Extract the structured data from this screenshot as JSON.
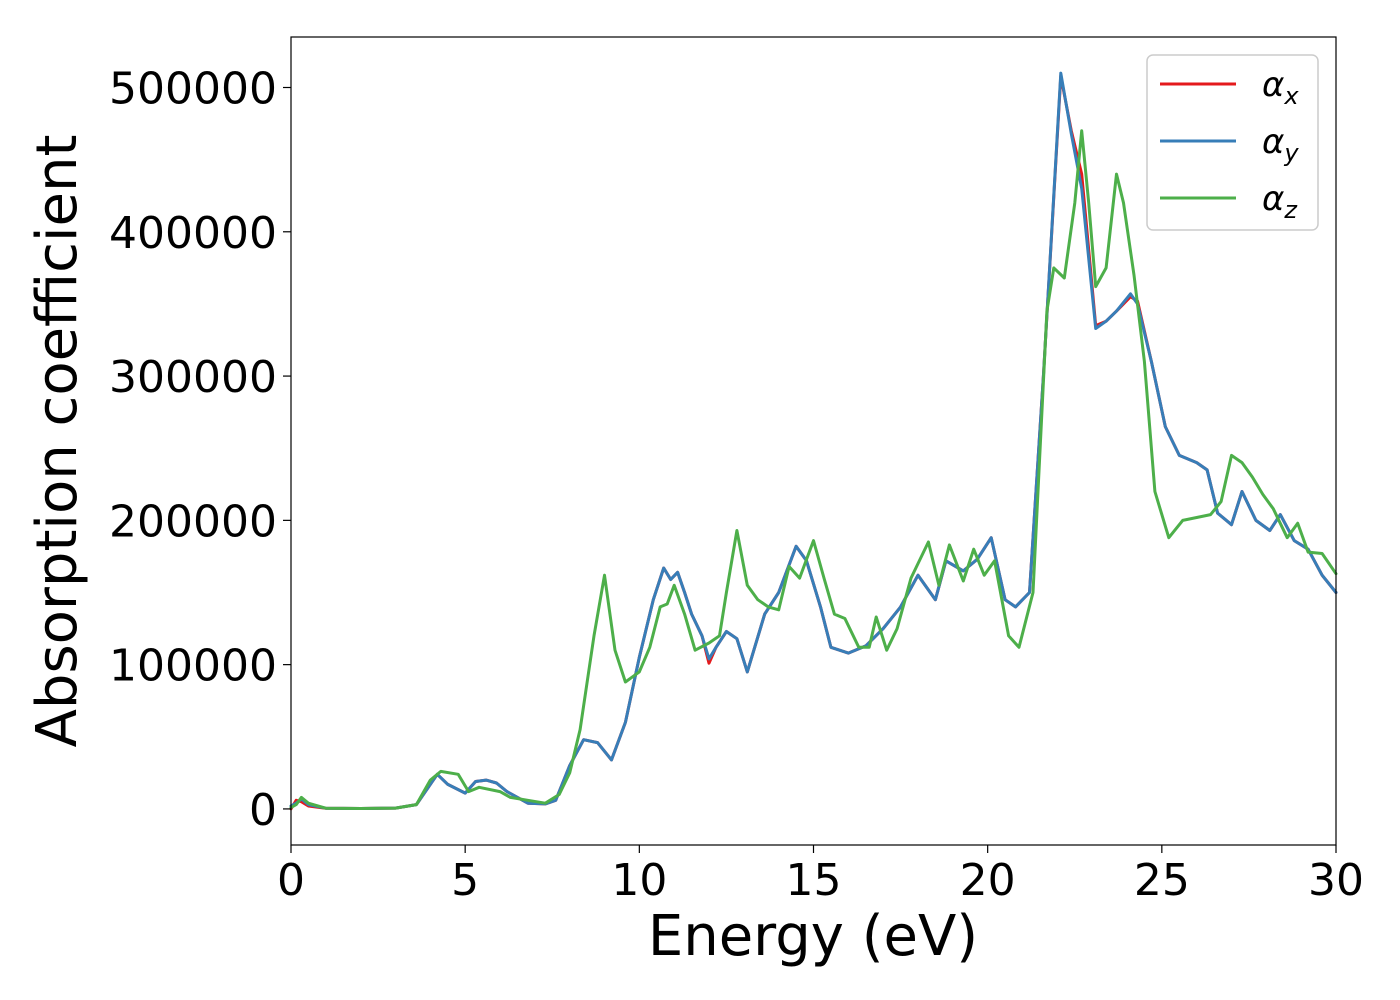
{
  "chart_data": {
    "type": "line",
    "xlabel": "Energy (eV)",
    "ylabel": "Absorption coefficient",
    "xlim": [
      0,
      30
    ],
    "ylim": [
      -25000,
      535000
    ],
    "xticks": [
      0,
      5,
      10,
      15,
      20,
      25,
      30
    ],
    "xtick_labels": [
      "0",
      "5",
      "10",
      "15",
      "20",
      "25",
      "30"
    ],
    "yticks": [
      0,
      100000,
      200000,
      300000,
      400000,
      500000
    ],
    "ytick_labels": [
      "0",
      "100000",
      "200000",
      "300000",
      "400000",
      "500000"
    ],
    "grid": false,
    "legend_position": "top-right",
    "series": [
      {
        "name": "α_x",
        "name_base": "α",
        "name_sub": "x",
        "color": "#e41a1c",
        "points": [
          [
            0,
            0
          ],
          [
            0.15,
            6000
          ],
          [
            0.3,
            5000
          ],
          [
            0.5,
            2000
          ],
          [
            1,
            500
          ],
          [
            2,
            300
          ],
          [
            3,
            600
          ],
          [
            3.6,
            3000
          ],
          [
            4.0,
            17000
          ],
          [
            4.2,
            24000
          ],
          [
            4.5,
            17000
          ],
          [
            5.0,
            11000
          ],
          [
            5.3,
            19000
          ],
          [
            5.6,
            20000
          ],
          [
            5.9,
            18000
          ],
          [
            6.2,
            12000
          ],
          [
            6.8,
            4000
          ],
          [
            7.3,
            3500
          ],
          [
            7.6,
            6000
          ],
          [
            8.0,
            30000
          ],
          [
            8.4,
            48000
          ],
          [
            8.8,
            46000
          ],
          [
            9.2,
            34000
          ],
          [
            9.6,
            60000
          ],
          [
            10.0,
            105000
          ],
          [
            10.4,
            145000
          ],
          [
            10.7,
            167000
          ],
          [
            10.9,
            159000
          ],
          [
            11.1,
            164000
          ],
          [
            11.3,
            150000
          ],
          [
            11.5,
            135000
          ],
          [
            11.8,
            120000
          ],
          [
            12.0,
            101000
          ],
          [
            12.2,
            112000
          ],
          [
            12.5,
            123000
          ],
          [
            12.8,
            118000
          ],
          [
            13.1,
            95000
          ],
          [
            13.6,
            135000
          ],
          [
            14.0,
            150000
          ],
          [
            14.5,
            182000
          ],
          [
            14.8,
            172000
          ],
          [
            15.2,
            140000
          ],
          [
            15.5,
            112000
          ],
          [
            16.0,
            108000
          ],
          [
            16.5,
            113000
          ],
          [
            17.0,
            125000
          ],
          [
            17.5,
            140000
          ],
          [
            18.0,
            162000
          ],
          [
            18.5,
            145000
          ],
          [
            18.8,
            172000
          ],
          [
            19.3,
            165000
          ],
          [
            19.7,
            173000
          ],
          [
            20.1,
            188000
          ],
          [
            20.5,
            145000
          ],
          [
            20.8,
            140000
          ],
          [
            21.2,
            150000
          ],
          [
            21.6,
            300000
          ],
          [
            22.1,
            508000
          ],
          [
            22.4,
            470000
          ],
          [
            22.7,
            440000
          ],
          [
            23.1,
            335000
          ],
          [
            23.4,
            338000
          ],
          [
            23.7,
            345000
          ],
          [
            24.1,
            355000
          ],
          [
            24.3,
            352000
          ],
          [
            24.7,
            310000
          ],
          [
            25.1,
            265000
          ],
          [
            25.5,
            245000
          ],
          [
            26.0,
            240000
          ],
          [
            26.3,
            235000
          ],
          [
            26.6,
            205000
          ],
          [
            27.0,
            197000
          ],
          [
            27.3,
            220000
          ],
          [
            27.7,
            200000
          ],
          [
            28.1,
            193000
          ],
          [
            28.4,
            204000
          ],
          [
            28.8,
            186000
          ],
          [
            29.2,
            180000
          ],
          [
            29.6,
            162000
          ],
          [
            30.0,
            150000
          ]
        ]
      },
      {
        "name": "α_y",
        "name_base": "α",
        "name_sub": "y",
        "color": "#377eb8",
        "points": [
          [
            0,
            2000
          ],
          [
            0.15,
            4000
          ],
          [
            0.3,
            7000
          ],
          [
            0.5,
            3000
          ],
          [
            1,
            500
          ],
          [
            2,
            300
          ],
          [
            3,
            600
          ],
          [
            3.6,
            3000
          ],
          [
            4.0,
            17000
          ],
          [
            4.2,
            24000
          ],
          [
            4.5,
            17000
          ],
          [
            5.0,
            11000
          ],
          [
            5.3,
            19000
          ],
          [
            5.6,
            20000
          ],
          [
            5.9,
            18000
          ],
          [
            6.2,
            12000
          ],
          [
            6.8,
            4000
          ],
          [
            7.3,
            3500
          ],
          [
            7.6,
            6000
          ],
          [
            8.0,
            30000
          ],
          [
            8.4,
            48000
          ],
          [
            8.8,
            46000
          ],
          [
            9.2,
            34000
          ],
          [
            9.6,
            60000
          ],
          [
            10.0,
            105000
          ],
          [
            10.4,
            145000
          ],
          [
            10.7,
            167000
          ],
          [
            10.9,
            159000
          ],
          [
            11.1,
            164000
          ],
          [
            11.3,
            150000
          ],
          [
            11.5,
            135000
          ],
          [
            11.8,
            120000
          ],
          [
            12.0,
            104000
          ],
          [
            12.2,
            112000
          ],
          [
            12.5,
            123000
          ],
          [
            12.8,
            118000
          ],
          [
            13.1,
            95000
          ],
          [
            13.6,
            135000
          ],
          [
            14.0,
            150000
          ],
          [
            14.5,
            182000
          ],
          [
            14.8,
            172000
          ],
          [
            15.2,
            140000
          ],
          [
            15.5,
            112000
          ],
          [
            16.0,
            108000
          ],
          [
            16.5,
            113000
          ],
          [
            17.0,
            125000
          ],
          [
            17.5,
            140000
          ],
          [
            18.0,
            162000
          ],
          [
            18.5,
            145000
          ],
          [
            18.8,
            172000
          ],
          [
            19.3,
            165000
          ],
          [
            19.7,
            173000
          ],
          [
            20.1,
            188000
          ],
          [
            20.5,
            145000
          ],
          [
            20.8,
            140000
          ],
          [
            21.2,
            150000
          ],
          [
            21.6,
            300000
          ],
          [
            22.1,
            510000
          ],
          [
            22.4,
            468000
          ],
          [
            22.7,
            430000
          ],
          [
            23.1,
            333000
          ],
          [
            23.4,
            338000
          ],
          [
            23.7,
            345000
          ],
          [
            24.1,
            357000
          ],
          [
            24.3,
            350000
          ],
          [
            24.7,
            310000
          ],
          [
            25.1,
            265000
          ],
          [
            25.5,
            245000
          ],
          [
            26.0,
            240000
          ],
          [
            26.3,
            235000
          ],
          [
            26.6,
            205000
          ],
          [
            27.0,
            197000
          ],
          [
            27.3,
            220000
          ],
          [
            27.7,
            200000
          ],
          [
            28.1,
            193000
          ],
          [
            28.4,
            204000
          ],
          [
            28.8,
            186000
          ],
          [
            29.2,
            180000
          ],
          [
            29.6,
            162000
          ],
          [
            30.0,
            150000
          ]
        ]
      },
      {
        "name": "α_z",
        "name_base": "α",
        "name_sub": "z",
        "color": "#4daf4a",
        "points": [
          [
            0,
            1000
          ],
          [
            0.15,
            3000
          ],
          [
            0.3,
            8000
          ],
          [
            0.5,
            4000
          ],
          [
            1,
            500
          ],
          [
            2,
            300
          ],
          [
            3,
            600
          ],
          [
            3.6,
            3000
          ],
          [
            4.0,
            20000
          ],
          [
            4.3,
            26000
          ],
          [
            4.8,
            24000
          ],
          [
            5.1,
            12000
          ],
          [
            5.4,
            15000
          ],
          [
            6.0,
            12000
          ],
          [
            6.3,
            8000
          ],
          [
            6.8,
            6000
          ],
          [
            7.3,
            4000
          ],
          [
            7.7,
            10000
          ],
          [
            8.0,
            25000
          ],
          [
            8.3,
            55000
          ],
          [
            8.7,
            120000
          ],
          [
            9.0,
            162000
          ],
          [
            9.3,
            110000
          ],
          [
            9.6,
            88000
          ],
          [
            10.0,
            95000
          ],
          [
            10.3,
            112000
          ],
          [
            10.6,
            140000
          ],
          [
            10.8,
            142000
          ],
          [
            11.0,
            155000
          ],
          [
            11.3,
            135000
          ],
          [
            11.6,
            110000
          ],
          [
            12.0,
            115000
          ],
          [
            12.3,
            120000
          ],
          [
            12.5,
            150000
          ],
          [
            12.8,
            193000
          ],
          [
            13.1,
            155000
          ],
          [
            13.4,
            145000
          ],
          [
            13.7,
            140000
          ],
          [
            14.0,
            138000
          ],
          [
            14.3,
            168000
          ],
          [
            14.6,
            160000
          ],
          [
            15.0,
            186000
          ],
          [
            15.3,
            160000
          ],
          [
            15.6,
            135000
          ],
          [
            15.9,
            132000
          ],
          [
            16.3,
            112000
          ],
          [
            16.6,
            112000
          ],
          [
            16.8,
            133000
          ],
          [
            17.1,
            110000
          ],
          [
            17.4,
            125000
          ],
          [
            17.8,
            160000
          ],
          [
            18.3,
            185000
          ],
          [
            18.6,
            155000
          ],
          [
            18.9,
            183000
          ],
          [
            19.3,
            158000
          ],
          [
            19.6,
            180000
          ],
          [
            19.9,
            162000
          ],
          [
            20.2,
            172000
          ],
          [
            20.6,
            120000
          ],
          [
            20.9,
            112000
          ],
          [
            21.3,
            150000
          ],
          [
            21.7,
            345000
          ],
          [
            21.9,
            375000
          ],
          [
            22.2,
            368000
          ],
          [
            22.5,
            420000
          ],
          [
            22.7,
            470000
          ],
          [
            22.9,
            420000
          ],
          [
            23.1,
            362000
          ],
          [
            23.4,
            375000
          ],
          [
            23.7,
            440000
          ],
          [
            23.9,
            420000
          ],
          [
            24.2,
            370000
          ],
          [
            24.5,
            310000
          ],
          [
            24.8,
            220000
          ],
          [
            25.2,
            188000
          ],
          [
            25.6,
            200000
          ],
          [
            26.0,
            202000
          ],
          [
            26.4,
            204000
          ],
          [
            26.7,
            213000
          ],
          [
            27.0,
            245000
          ],
          [
            27.3,
            240000
          ],
          [
            27.6,
            230000
          ],
          [
            27.9,
            218000
          ],
          [
            28.2,
            208000
          ],
          [
            28.6,
            188000
          ],
          [
            28.9,
            198000
          ],
          [
            29.2,
            178000
          ],
          [
            29.6,
            177000
          ],
          [
            30.0,
            163000
          ]
        ]
      }
    ]
  }
}
